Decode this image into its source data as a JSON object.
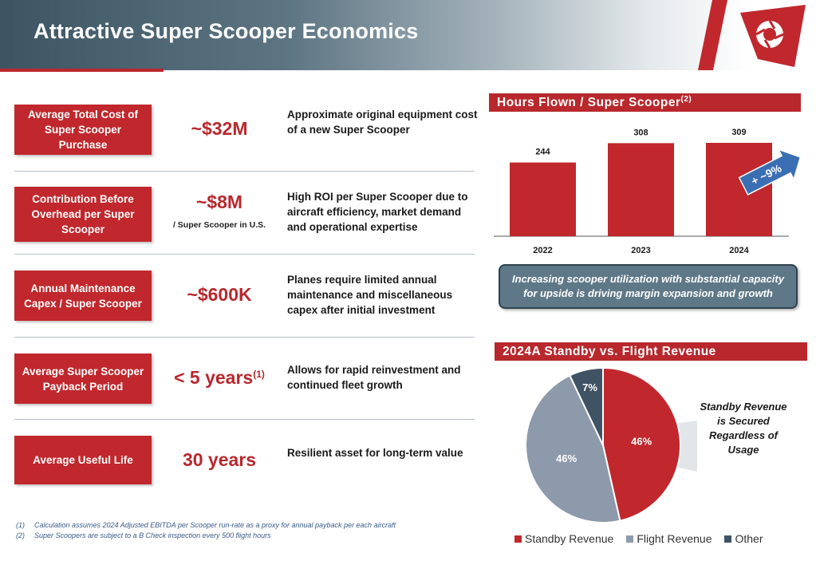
{
  "header": {
    "title": "Attractive Super Scooper Economics"
  },
  "colors": {
    "red": "#c0282d",
    "slate": "#8d9aab",
    "dark_slate": "#3f5364",
    "callout_bg": "#5f7888"
  },
  "metrics": [
    {
      "label": "Average Total Cost of Super Scooper Purchase",
      "value": "~$32M",
      "sub": "",
      "sup": "",
      "desc": "Approximate original equipment cost of a new Super Scooper"
    },
    {
      "label": "Contribution Before Overhead per Super Scooper",
      "value": "~$8M",
      "sub": "/ Super Scooper in U.S.",
      "sup": "",
      "desc": "High ROI per Super Scooper due to aircraft efficiency, market demand and operational expertise"
    },
    {
      "label": "Annual Maintenance Capex / Super Scooper",
      "value": "~$600K",
      "sub": "",
      "sup": "",
      "desc": "Planes require limited annual maintenance and miscellaneous capex after initial investment"
    },
    {
      "label": "Average Super Scooper Payback Period",
      "value": "< 5 years",
      "sub": "",
      "sup": "(1)",
      "desc": "Allows for rapid reinvestment and continued fleet growth"
    },
    {
      "label": "Average Useful Life",
      "value": "30 years",
      "sub": "",
      "sup": "",
      "desc": "Resilient asset for long-term value"
    }
  ],
  "bar_section": {
    "title": "Hours Flown / Super Scooper",
    "sup": "(2)",
    "growth_label": "+ ~9%"
  },
  "callout": {
    "text": "Increasing scooper utilization with substantial capacity for upside is driving margin expansion and growth"
  },
  "pie_section": {
    "title": "2024A Standby vs. Flight Revenue",
    "callout_text": "Standby Revenue is Secured Regardless of Usage"
  },
  "legend": [
    {
      "label": "Standby Revenue",
      "color": "#c0282d"
    },
    {
      "label": "Flight Revenue",
      "color": "#8d9aab"
    },
    {
      "label": "Other",
      "color": "#3f5364"
    }
  ],
  "footnotes": [
    {
      "num": "(1)",
      "text": "Calculation assumes 2024 Adjusted EBITDA per Scooper run-rate as a proxy for annual payback per each aircraft"
    },
    {
      "num": "(2)",
      "text": "Super Scoopers are subject to a B Check inspection every 500 flight hours"
    }
  ],
  "chart_data": [
    {
      "type": "bar",
      "title": "Hours Flown / Super Scooper",
      "categories": [
        "2022",
        "2023",
        "2024"
      ],
      "values": [
        244,
        308,
        309
      ],
      "data_labels": [
        "244",
        "308",
        "309"
      ],
      "annotation": "+ ~9%",
      "grid": false
    },
    {
      "type": "pie",
      "title": "2024A Standby vs. Flight Revenue",
      "labels": [
        "Standby Revenue",
        "Flight Revenue",
        "Other"
      ],
      "values": [
        46,
        46,
        7
      ],
      "data_labels": [
        "46%",
        "46%",
        "7%"
      ],
      "legend": "bottom"
    }
  ]
}
